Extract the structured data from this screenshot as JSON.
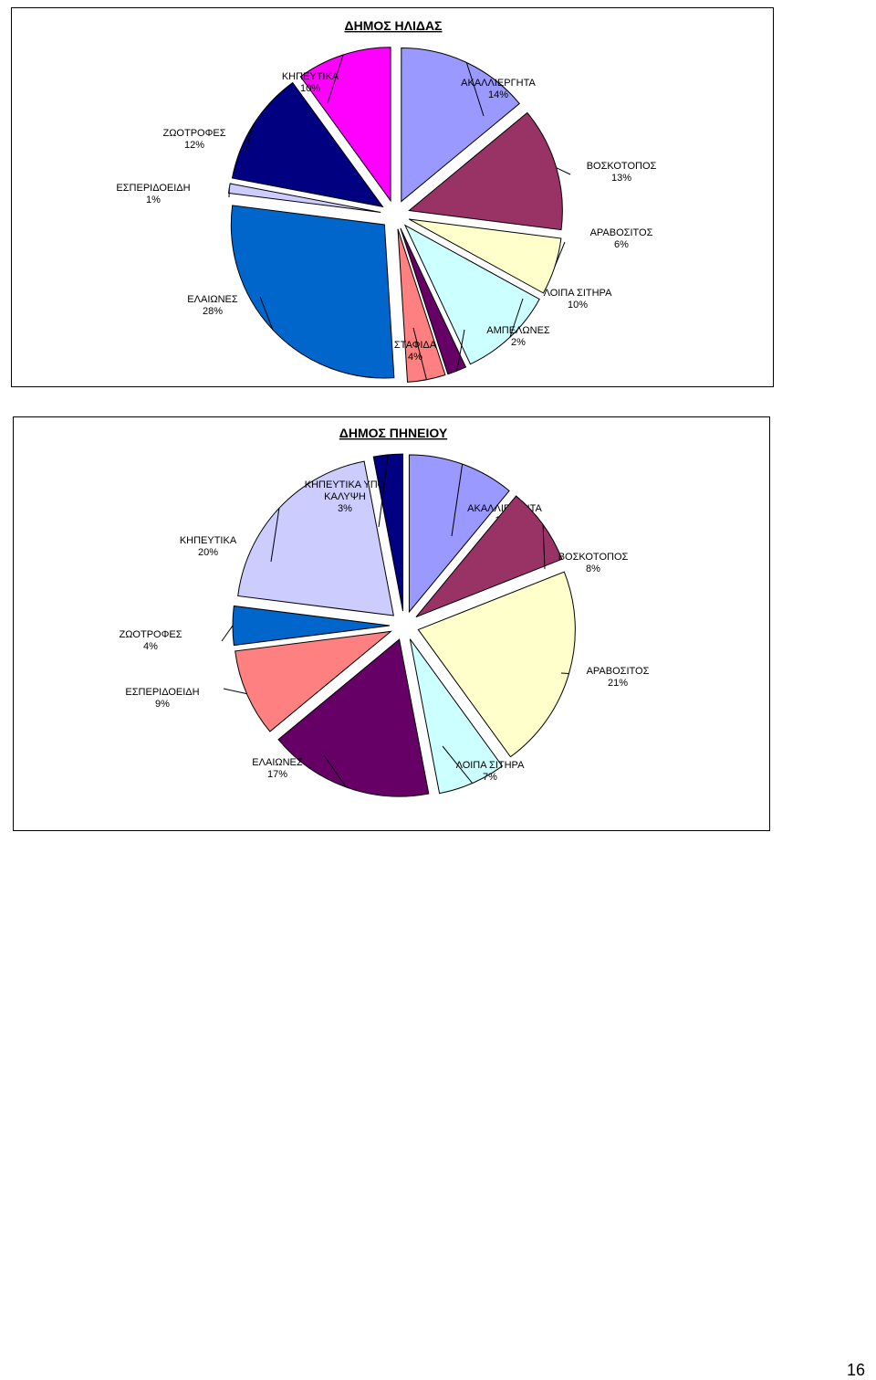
{
  "chart_data": [
    {
      "type": "pie",
      "title": "ΔΗΜΟΣ ΗΛΙΔΑΣ",
      "slices": [
        {
          "label": "ΑΚΑΛΛΙΕΡΓΗΤΑ",
          "value": 14,
          "value_label": "14%",
          "color": "#9999ff"
        },
        {
          "label": "ΒΟΣΚΟΤΟΠΟΣ",
          "value": 13,
          "value_label": "13%",
          "color": "#993366"
        },
        {
          "label": "ΑΡΑΒΟΣΙΤΟΣ",
          "value": 6,
          "value_label": "6%",
          "color": "#ffffcc"
        },
        {
          "label": "ΛΟΙΠΑ ΣΙΤΗΡΑ",
          "value": 10,
          "value_label": "10%",
          "color": "#ccffff"
        },
        {
          "label": "ΑΜΠΕΛΩΝΕΣ",
          "value": 2,
          "value_label": "2%",
          "color": "#660066"
        },
        {
          "label": "ΣΤΑΦΙΔΑ",
          "value": 4,
          "value_label": "4%",
          "color": "#ff8080"
        },
        {
          "label": "ΕΛΑΙΩΝΕΣ",
          "value": 28,
          "value_label": "28%",
          "color": "#0066cc"
        },
        {
          "label": "ΕΣΠΕΡΙΔΟΕΙΔΗ",
          "value": 1,
          "value_label": "1%",
          "color": "#ccccff"
        },
        {
          "label": "ΖΩΟΤΡΟΦΕΣ",
          "value": 12,
          "value_label": "12%",
          "color": "#000080"
        },
        {
          "label": "ΚΗΠΕΥΤΙΚΑ",
          "value": 10,
          "value_label": "10%",
          "color": "#ff00ff"
        }
      ]
    },
    {
      "type": "pie",
      "title": "ΔΗΜΟΣ ΠΗΝΕΙΟΥ",
      "slices": [
        {
          "label": "ΑΚΑΛΛΙΕΡΓΗΤΑ",
          "value": 11,
          "value_label": "11%",
          "color": "#9999ff"
        },
        {
          "label": "ΒΟΣΚΟΤΟΠΟΣ",
          "value": 8,
          "value_label": "8%",
          "color": "#993366"
        },
        {
          "label": "ΑΡΑΒΟΣΙΤΟΣ",
          "value": 21,
          "value_label": "21%",
          "color": "#ffffcc"
        },
        {
          "label": "ΛΟΙΠΑ ΣΙΤΗΡΑ",
          "value": 7,
          "value_label": "7%",
          "color": "#ccffff"
        },
        {
          "label": "ΕΛΑΙΩΝΕΣ",
          "value": 17,
          "value_label": "17%",
          "color": "#660066"
        },
        {
          "label": "ΕΣΠΕΡΙΔΟΕΙΔΗ",
          "value": 9,
          "value_label": "9%",
          "color": "#ff8080"
        },
        {
          "label": "ΖΩΟΤΡΟΦΕΣ",
          "value": 4,
          "value_label": "4%",
          "color": "#0066cc"
        },
        {
          "label": "ΚΗΠΕΥΤΙΚΑ",
          "value": 20,
          "value_label": "20%",
          "color": "#ccccff"
        },
        {
          "label": "ΚΗΠΕΥΤΙΚΑ ΥΠΟ ΚΑΛΥΨΗ",
          "label_lines": [
            "ΚΗΠΕΥΤΙΚΑ ΥΠΟ",
            "ΚΑΛΥΨΗ"
          ],
          "value": 3,
          "value_label": "3%",
          "color": "#000080"
        }
      ]
    }
  ],
  "page": {
    "number": "16"
  }
}
